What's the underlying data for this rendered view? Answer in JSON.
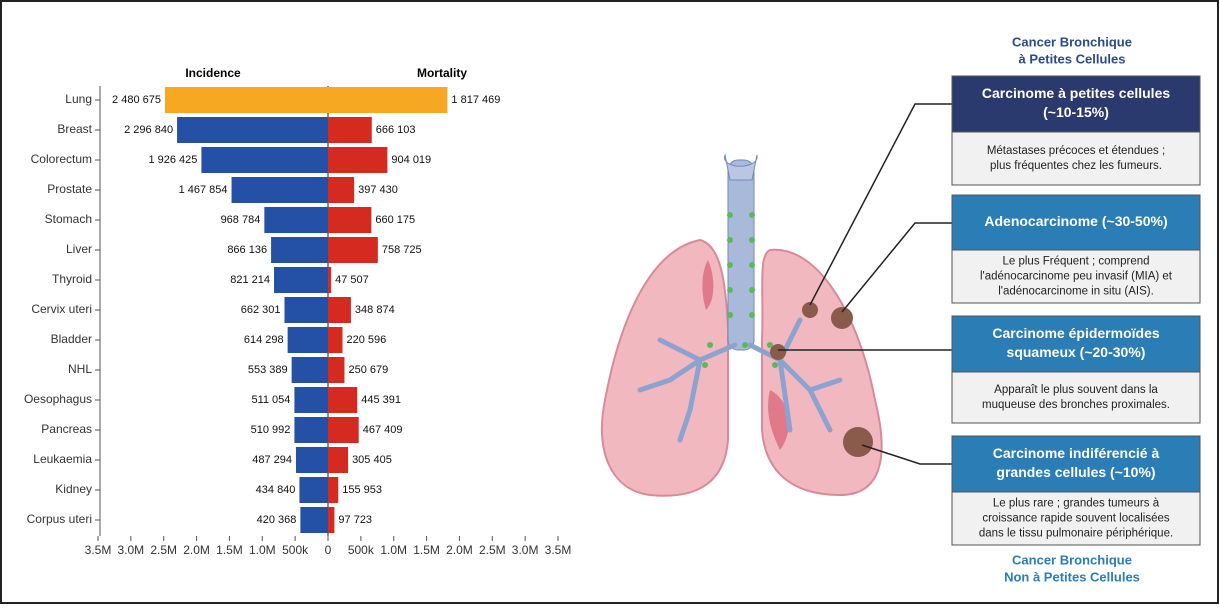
{
  "chart_data": {
    "type": "butterfly",
    "categories": [
      "Lung",
      "Breast",
      "Colorectum",
      "Prostate",
      "Stomach",
      "Liver",
      "Thyroid",
      "Cervix uteri",
      "Bladder",
      "NHL",
      "Oesophagus",
      "Pancreas",
      "Leukaemia",
      "Kidney",
      "Corpus uteri"
    ],
    "series": [
      {
        "name": "Incidence",
        "color": "#2450a6",
        "values": [
          2480675,
          2296840,
          1926425,
          1467854,
          968784,
          866136,
          821214,
          662301,
          614298,
          553389,
          511054,
          510992,
          487294,
          434840,
          420368
        ],
        "value_labels": [
          "2 480 675",
          "2 296 840",
          "1 926 425",
          "1 467 854",
          "968 784",
          "866 136",
          "821 214",
          "662 301",
          "614 298",
          "553 389",
          "511 054",
          "510 992",
          "487 294",
          "434 840",
          "420 368"
        ]
      },
      {
        "name": "Mortality",
        "color": "#d42a20",
        "values": [
          1817469,
          666103,
          904019,
          397430,
          660175,
          758725,
          47507,
          348874,
          220596,
          250679,
          445391,
          467409,
          305405,
          155953,
          97723
        ],
        "value_labels": [
          "1 817 469",
          "666 103",
          "904 019",
          "397 430",
          "660 175",
          "758 725",
          "47 507",
          "348 874",
          "220 596",
          "250 679",
          "445 391",
          "467 409",
          "305 405",
          "155 953",
          "97 723"
        ]
      }
    ],
    "highlight_index": 0,
    "highlight_color": "#f7a823",
    "xlim_left": [
      0,
      3500000
    ],
    "xlim_right": [
      0,
      3500000
    ],
    "xticks_left": [
      {
        "value": 3500000,
        "label": "3.5M"
      },
      {
        "value": 3000000,
        "label": "3.0M"
      },
      {
        "value": 2500000,
        "label": "2.5M"
      },
      {
        "value": 2000000,
        "label": "2.0M"
      },
      {
        "value": 1500000,
        "label": "1.5M"
      },
      {
        "value": 1000000,
        "label": "1.0M"
      },
      {
        "value": 500000,
        "label": "500k"
      }
    ],
    "xticks_right": [
      0,
      {
        "value": 500000,
        "label": "500k"
      },
      {
        "value": 1000000,
        "label": "1.0M"
      },
      {
        "value": 1500000,
        "label": "1.5M"
      },
      {
        "value": 2000000,
        "label": "2.0M"
      },
      {
        "value": 2500000,
        "label": "2.5M"
      },
      {
        "value": 3000000,
        "label": "3.0M"
      },
      {
        "value": 3500000,
        "label": "3.5M"
      }
    ]
  },
  "diagram": {
    "top_title": [
      "Cancer Bronchique",
      "à Petites Cellules"
    ],
    "bottom_title": [
      "Cancer Bronchique",
      "Non à Petites Cellules"
    ],
    "boxes": [
      {
        "header": [
          "Carcinome à petites cellules",
          "(~10-15%)"
        ],
        "description": [
          "Métastases précoces et étendues ;",
          "plus fréquentes chez les fumeurs."
        ]
      },
      {
        "header": [
          "Adenocarcinome (~30-50%)"
        ],
        "description": [
          "Le plus Fréquent ; comprend",
          "l'adénocarcinome peu invasif (MIA) et",
          "l'adénocarcinome in situ (AIS)."
        ]
      },
      {
        "header": [
          "Carcinome épidermoïdes",
          "squameux (~20-30%)"
        ],
        "description": [
          "Apparaît le plus souvent dans la",
          "muqueuse des bronches proximales."
        ]
      },
      {
        "header": [
          "Carcinome indiférencié à",
          "grandes cellules (~10%)"
        ],
        "description": [
          "Le plus rare ; grandes tumeurs à",
          "croissance rapide souvent localisées",
          "dans le tissu pulmonaire périphérique."
        ]
      }
    ]
  }
}
